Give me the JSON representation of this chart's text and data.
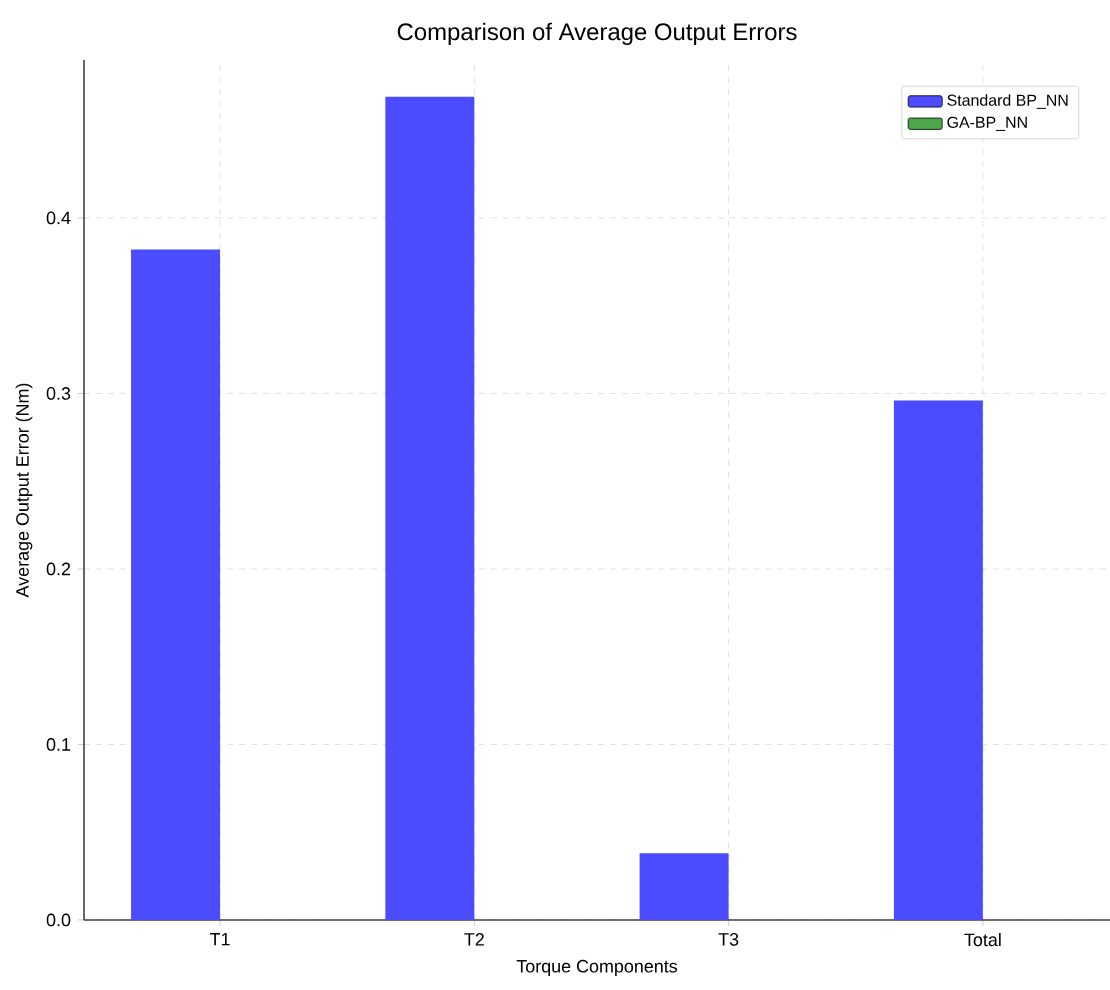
{
  "chart_data": {
    "type": "bar",
    "title": "Comparison of Average Output Errors",
    "xlabel": "Torque Components",
    "ylabel": "Average Output Error (Nm)",
    "categories": [
      "T1",
      "T2",
      "T3",
      "Total"
    ],
    "series": [
      {
        "name": "Standard BP_NN",
        "color": "#4b4bff",
        "values": [
          0.382,
          0.469,
          0.038,
          0.296
        ]
      },
      {
        "name": "GA-BP_NN",
        "color": "#4ca64c",
        "values": [
          null,
          null,
          null,
          null
        ]
      }
    ],
    "ylim": [
      0,
      0.49
    ],
    "yticks": [
      {
        "value": 0,
        "label": "0.0"
      },
      0.1,
      0.2,
      0.3,
      0.4
    ],
    "grid": true,
    "legend": "top right"
  }
}
